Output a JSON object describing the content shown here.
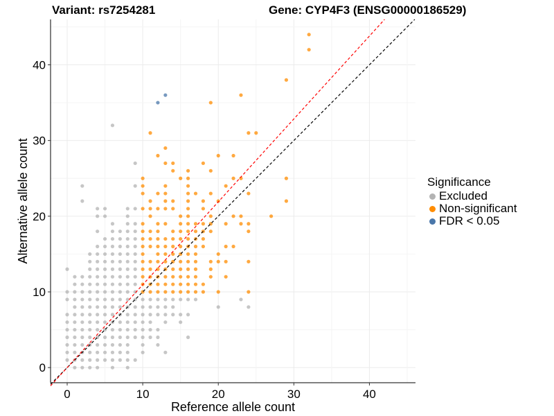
{
  "chart_data": {
    "type": "scatter",
    "title_left": "Variant: rs7254281",
    "title_right": "Gene: CYP4F3 (ENSG00000186529)",
    "xlabel": "Reference allele count",
    "ylabel": "Alternative allele count",
    "xlim": [
      -2.2,
      46.1
    ],
    "ylim": [
      -2,
      46
    ],
    "xticks": [
      0,
      10,
      20,
      30,
      40
    ],
    "yticks": [
      0,
      10,
      20,
      30,
      40
    ],
    "grid": true,
    "legend": {
      "title": "Significance",
      "placement": "right"
    },
    "reference_lines": [
      {
        "name": "identity",
        "slope": 1,
        "intercept": 0,
        "color": "#000000",
        "style": "dashed"
      },
      {
        "name": "fit",
        "slope": 1.095,
        "intercept": 0,
        "color": "#ff0000",
        "style": "dashed"
      }
    ],
    "series": [
      {
        "name": "Excluded",
        "color": "#b3b3b3",
        "rows": [
          [
            0,
            [
              1,
              2,
              3,
              4,
              6,
              8
            ]
          ],
          [
            1,
            [
              0,
              1,
              2,
              3,
              4,
              5,
              6,
              7,
              8,
              9
            ]
          ],
          [
            2,
            [
              0,
              1,
              2,
              3,
              4,
              5,
              6,
              7,
              8,
              10,
              13
            ]
          ],
          [
            3,
            [
              0,
              1,
              2,
              3,
              4,
              5,
              6,
              7,
              8,
              10,
              12
            ]
          ],
          [
            4,
            [
              0,
              1,
              2,
              3,
              4,
              5,
              6,
              7,
              8,
              9,
              10,
              11,
              12,
              16
            ]
          ],
          [
            5,
            [
              0,
              1,
              2,
              3,
              4,
              5,
              6,
              7,
              8,
              9,
              10,
              11,
              12
            ]
          ],
          [
            6,
            [
              0,
              1,
              2,
              3,
              4,
              5,
              6,
              7,
              8,
              9,
              10,
              11,
              13,
              15
            ]
          ],
          [
            7,
            [
              0,
              1,
              2,
              3,
              4,
              5,
              6,
              7,
              8,
              9,
              10,
              11,
              12,
              13,
              14,
              15,
              16
            ]
          ],
          [
            8,
            [
              1,
              2,
              3,
              4,
              5,
              6,
              7,
              8,
              9,
              10,
              11,
              12,
              13,
              14,
              20,
              24
            ]
          ],
          [
            9,
            [
              0,
              1,
              2,
              3,
              4,
              5,
              6,
              7,
              8,
              9,
              10,
              11,
              12,
              13,
              14,
              15,
              16,
              17,
              23
            ]
          ],
          [
            10,
            [
              0,
              1,
              2,
              3,
              4,
              5,
              6,
              7,
              8,
              9
            ]
          ],
          [
            11,
            [
              1,
              2,
              3,
              4,
              5,
              6,
              7,
              8,
              9
            ]
          ],
          [
            12,
            [
              1,
              2,
              3,
              4,
              5,
              6,
              7,
              8,
              9
            ]
          ],
          [
            13,
            [
              0,
              3,
              4,
              5,
              6,
              7,
              8,
              9
            ]
          ],
          [
            14,
            [
              3,
              4,
              5,
              6,
              7,
              8,
              9
            ]
          ],
          [
            15,
            [
              3,
              4,
              5,
              6,
              7,
              8,
              9
            ]
          ],
          [
            16,
            [
              4,
              5,
              6,
              7,
              8,
              9
            ]
          ],
          [
            17,
            [
              5,
              6,
              7,
              8,
              9
            ]
          ],
          [
            18,
            [
              4,
              6,
              7,
              8,
              9
            ]
          ],
          [
            19,
            [
              6,
              8,
              9
            ]
          ],
          [
            20,
            [
              4,
              5,
              8
            ]
          ],
          [
            21,
            [
              4,
              5,
              8,
              9
            ]
          ],
          [
            22,
            [
              2
            ]
          ],
          [
            24,
            [
              2,
              9
            ]
          ],
          [
            27,
            [
              9
            ]
          ],
          [
            32,
            [
              6
            ]
          ]
        ]
      },
      {
        "name": "Non-significant",
        "color": "#ff8c00",
        "rows": [
          [
            10,
            [
              10,
              11,
              12,
              13,
              14,
              15,
              16,
              17,
              18,
              20,
              24
            ]
          ],
          [
            11,
            [
              10,
              11,
              12,
              13,
              14,
              15,
              16,
              17,
              18
            ]
          ],
          [
            12,
            [
              10,
              11,
              12,
              13,
              14,
              15,
              16,
              17,
              19,
              21
            ]
          ],
          [
            13,
            [
              10,
              11,
              12,
              13,
              14,
              15,
              16,
              17,
              19
            ]
          ],
          [
            14,
            [
              10,
              11,
              12,
              13,
              14,
              15,
              16,
              17,
              19,
              20,
              21,
              24
            ]
          ],
          [
            15,
            [
              10,
              12,
              13,
              14,
              15,
              16,
              17,
              20
            ]
          ],
          [
            16,
            [
              10,
              11,
              12,
              13,
              14,
              15,
              16,
              17,
              18,
              21,
              22
            ]
          ],
          [
            17,
            [
              10,
              11,
              12,
              13,
              14,
              15,
              16,
              17,
              18
            ]
          ],
          [
            18,
            [
              10,
              11,
              12,
              14,
              15,
              16,
              17,
              18,
              19,
              24
            ]
          ],
          [
            19,
            [
              10,
              12,
              13,
              15,
              16,
              17,
              18,
              19,
              21,
              23,
              24
            ]
          ],
          [
            20,
            [
              11,
              15,
              16,
              19,
              22,
              23,
              27
            ]
          ],
          [
            21,
            [
              10,
              11,
              12,
              13,
              14,
              16,
              18
            ]
          ],
          [
            22,
            [
              11,
              13,
              14,
              16,
              18,
              20,
              29
            ]
          ],
          [
            23,
            [
              10,
              12,
              13,
              16,
              17,
              19,
              24
            ]
          ],
          [
            24,
            [
              10,
              13,
              16,
              21
            ]
          ],
          [
            25,
            [
              10,
              15,
              16,
              22,
              23,
              29
            ]
          ],
          [
            26,
            [
              14,
              16,
              19
            ]
          ],
          [
            27,
            [
              13,
              14,
              18
            ]
          ],
          [
            28,
            [
              12,
              20,
              22
            ]
          ],
          [
            29,
            [
              13
            ]
          ],
          [
            31,
            [
              11,
              24,
              25
            ]
          ],
          [
            35,
            [
              19
            ]
          ],
          [
            36,
            [
              23
            ]
          ],
          [
            38,
            [
              29
            ]
          ],
          [
            42,
            [
              32
            ]
          ],
          [
            44,
            [
              32
            ]
          ]
        ]
      },
      {
        "name": "FDR < 0.05",
        "color": "#4a77aa",
        "rows": [
          [
            35,
            [
              12
            ]
          ],
          [
            36,
            [
              13
            ]
          ]
        ]
      }
    ]
  }
}
